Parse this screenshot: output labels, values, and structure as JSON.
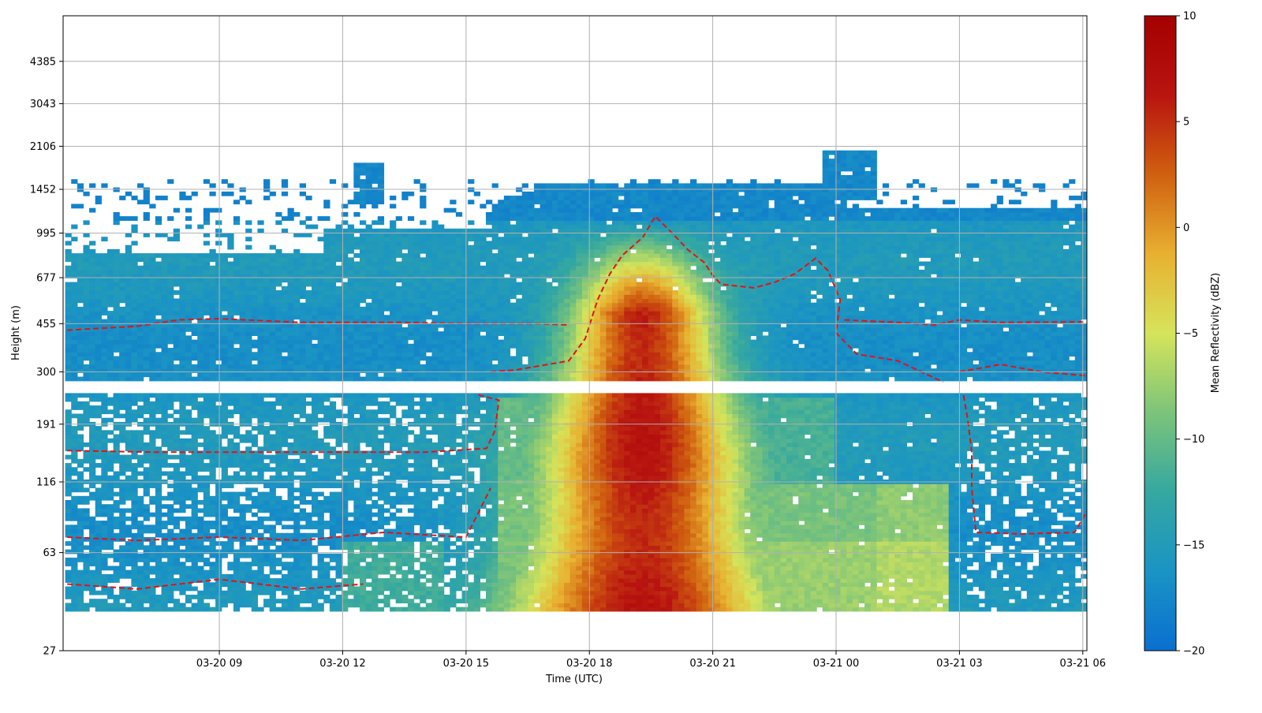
{
  "chart_data": {
    "type": "heatmap",
    "title": "",
    "xlabel": "Time (UTC)",
    "ylabel": "Height (m)",
    "colorbar_label": "Mean Reflectivity (dBZ)",
    "xlim_hours": [
      5.2,
      30.1
    ],
    "x_ticks": [
      {
        "hour": 9,
        "label": "03-20 09"
      },
      {
        "hour": 12,
        "label": "03-20 12"
      },
      {
        "hour": 15,
        "label": "03-20 15"
      },
      {
        "hour": 18,
        "label": "03-20 18"
      },
      {
        "hour": 21,
        "label": "03-20 21"
      },
      {
        "hour": 24,
        "label": "03-21 00"
      },
      {
        "hour": 27,
        "label": "03-21 03"
      },
      {
        "hour": 30,
        "label": "03-21 06"
      }
    ],
    "y_scale": "log",
    "ylim": [
      27,
      6500
    ],
    "y_ticks": [
      27,
      63,
      116,
      191,
      300,
      455,
      677,
      995,
      1452,
      2106,
      3043,
      4385
    ],
    "colorbar": {
      "range": [
        -20,
        10
      ],
      "ticks": [
        -20,
        -15,
        -10,
        -5,
        0,
        5,
        10
      ],
      "tick_labels": [
        "−20",
        "−15",
        "−10",
        "−5",
        "0",
        "5",
        "10"
      ],
      "colormap": [
        "#0a6fd0",
        "#1a94c4",
        "#35a8a0",
        "#7cc47a",
        "#d6e45a",
        "#e8b030",
        "#d06010",
        "#b81410",
        "#a40000"
      ]
    },
    "grid": true,
    "contour_color": "#e81010",
    "contour_style": "dashed",
    "description_data": {
      "background_dbz": -16,
      "max_dbz": 6,
      "storm_peak_hour": 19.3,
      "gap_height_range_m": [
        248,
        278
      ]
    }
  }
}
